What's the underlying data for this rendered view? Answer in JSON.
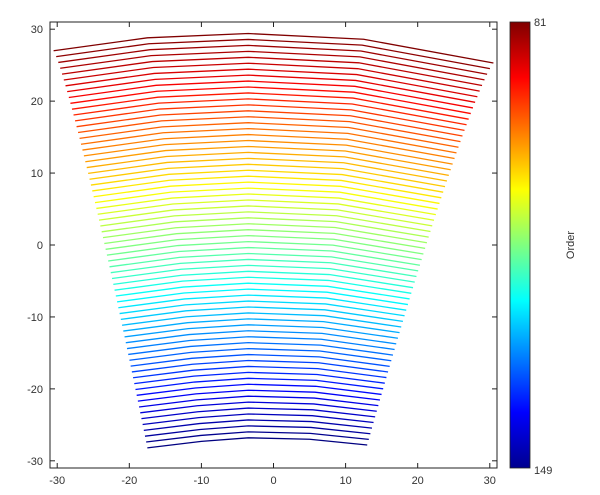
{
  "chart_data": {
    "type": "line",
    "title": "",
    "xlabel": "",
    "ylabel": "",
    "xlim": [
      -31,
      31
    ],
    "ylim": [
      -31,
      31
    ],
    "xticks": [
      -30,
      -20,
      -10,
      0,
      10,
      20,
      30
    ],
    "yticks": [
      -30,
      -20,
      -10,
      0,
      10,
      20,
      30
    ],
    "grid": false,
    "colormap": "jet",
    "colorbar": {
      "label": "Order",
      "min": 81,
      "max": 149,
      "top_label": "81",
      "bottom_label": "149",
      "direction": "reversed"
    },
    "series_description": "69 diffraction orders (81 to 149), each a line across x at a y level; top order 81 (red), bottom order 149 (blue)",
    "orders": {
      "first": 81,
      "last": 149,
      "count": 69
    },
    "top_line": {
      "order": 81,
      "x": [
        -30.5,
        -17.5,
        -3.5,
        12.5,
        30.5
      ],
      "y": [
        27.0,
        28.8,
        29.4,
        28.6,
        25.3
      ]
    },
    "bottom_line": {
      "order": 149,
      "x": [
        -17.5,
        -10,
        -3.5,
        5,
        13
      ],
      "y": [
        -28.2,
        -27.3,
        -26.8,
        -27.0,
        -27.8
      ]
    }
  }
}
